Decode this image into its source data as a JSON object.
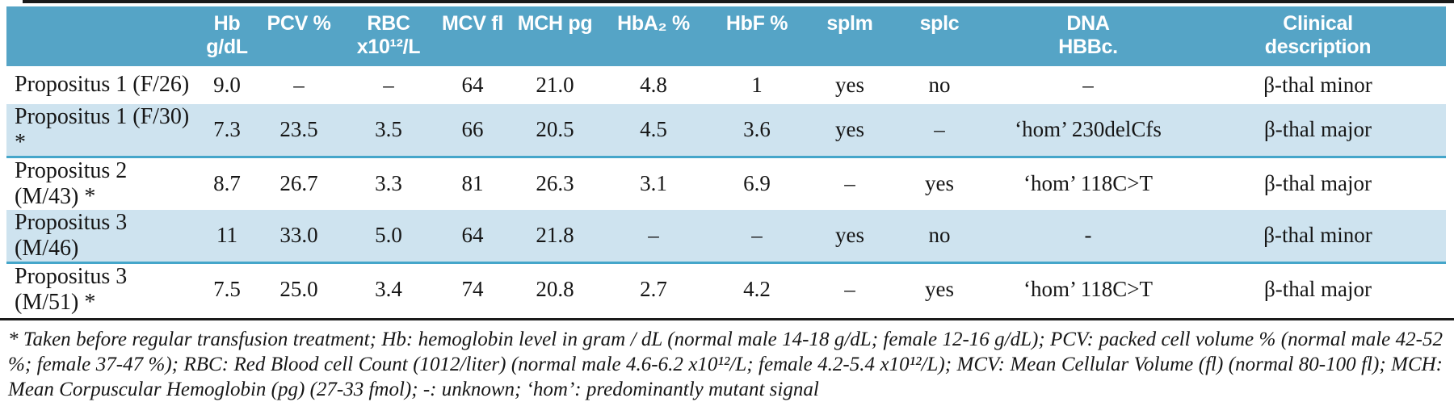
{
  "colors": {
    "header_bg": "#55a4c6",
    "row_alt_bg": "#cee3ef",
    "row_alt_border": "#45a6ca",
    "text_color": "#161616",
    "rule_color": "#1a1a1a"
  },
  "table": {
    "columns": [
      {
        "key": "name",
        "label": ""
      },
      {
        "key": "hb",
        "label": "Hb g/dL"
      },
      {
        "key": "pcv",
        "label": "PCV %"
      },
      {
        "key": "rbc",
        "label": "RBC\nx10¹²/L"
      },
      {
        "key": "mcv",
        "label": "MCV fl"
      },
      {
        "key": "mch",
        "label": "MCH pg"
      },
      {
        "key": "hba2",
        "label": "HbA₂ %"
      },
      {
        "key": "hbf",
        "label": "HbF %"
      },
      {
        "key": "splm",
        "label": "splm"
      },
      {
        "key": "splc",
        "label": "splc"
      },
      {
        "key": "dna",
        "label": "DNA\nHBBc."
      },
      {
        "key": "clinical",
        "label": "Clinical\ndescription"
      }
    ],
    "rows": [
      {
        "name": "Propositus 1 (F/26)",
        "hb": "9.0",
        "pcv": "–",
        "rbc": "–",
        "mcv": "64",
        "mch": "21.0",
        "hba2": "4.8",
        "hbf": "1",
        "splm": "yes",
        "splc": "no",
        "dna": "–",
        "clinical": "β-thal minor"
      },
      {
        "name": "Propositus 1 (F/30) *",
        "hb": "7.3",
        "pcv": "23.5",
        "rbc": "3.5",
        "mcv": "66",
        "mch": "20.5",
        "hba2": "4.5",
        "hbf": "3.6",
        "splm": "yes",
        "splc": "–",
        "dna": "‘hom’ 230delCfs",
        "clinical": "β-thal major"
      },
      {
        "name": "Propositus 2 (M/43) *",
        "hb": "8.7",
        "pcv": "26.7",
        "rbc": "3.3",
        "mcv": "81",
        "mch": "26.3",
        "hba2": "3.1",
        "hbf": "6.9",
        "splm": "–",
        "splc": "yes",
        "dna": "‘hom’ 118C>T",
        "clinical": "β-thal major"
      },
      {
        "name": "Propositus 3 (M/46)",
        "hb": "11",
        "pcv": "33.0",
        "rbc": "5.0",
        "mcv": "64",
        "mch": "21.8",
        "hba2": "–",
        "hbf": "–",
        "splm": "yes",
        "splc": "no",
        "dna": "-",
        "clinical": "β-thal minor"
      },
      {
        "name": "Propositus 3 (M/51) *",
        "hb": "7.5",
        "pcv": "25.0",
        "rbc": "3.4",
        "mcv": "74",
        "mch": "20.8",
        "hba2": "2.7",
        "hbf": "4.2",
        "splm": "–",
        "splc": "yes",
        "dna": "‘hom’ 118C>T",
        "clinical": "β-thal major"
      }
    ]
  },
  "footnote": {
    "text": "* Taken before regular transfusion treatment; Hb: hemoglobin level in gram / dL (normal male 14-18 g/dL; female 12-16 g/dL); PCV: packed cell volume % (normal male 42-52 %; female 37-47 %); RBC:  Red Blood cell Count (1012/liter) (normal male 4.6-6.2 x10¹²/L; female 4.2-5.4 x10¹²/L); MCV: Mean Cellular Volume (fl) (normal 80-100 fl); MCH: Mean Corpuscular Hemoglobin (pg) (27-33  fmol); -: unknown; ‘hom’: predominantly mutant signal"
  }
}
